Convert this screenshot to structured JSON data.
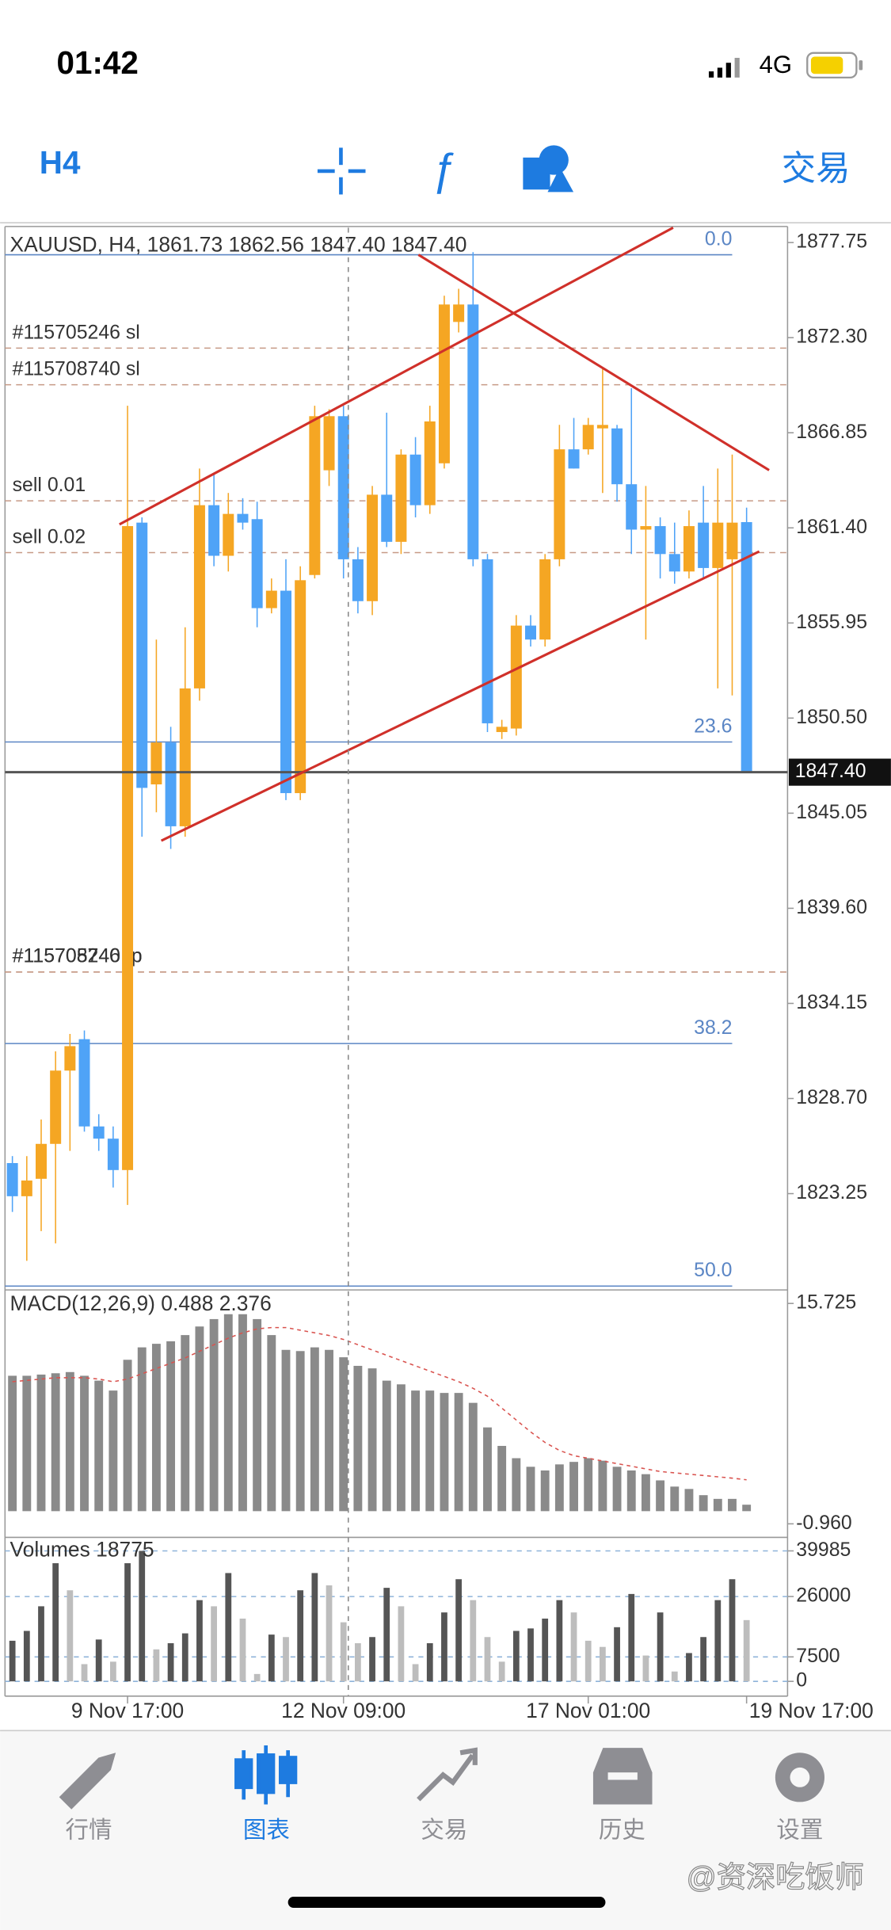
{
  "status_bar": {
    "time": "01:42",
    "network": "4G"
  },
  "toolbar": {
    "timeframe": "H4",
    "trade": "交易"
  },
  "chart_data": [
    {
      "type": "candlestick",
      "title": "XAUUSD, H4, 1861.73 1862.56 1847.40 1847.40",
      "up_color": "#f5a623",
      "down_color": "#4fa3f7",
      "open": [
        1825.0,
        1823.1,
        1824.1,
        1826.1,
        1830.3,
        1832.1,
        1827.1,
        1826.4,
        1824.6,
        1861.7,
        1846.7,
        1849.1,
        1844.3,
        1852.2,
        1862.7,
        1859.8,
        1862.2,
        1861.9,
        1856.8,
        1857.8,
        1846.2,
        1858.7,
        1864.7,
        1867.8,
        1859.6,
        1857.2,
        1863.3,
        1860.6,
        1865.6,
        1862.7,
        1865.1,
        1873.2,
        1874.2,
        1859.6,
        1849.7,
        1849.9,
        1855.8,
        1855.0,
        1859.6,
        1865.9,
        1865.9,
        1867.1,
        1867.1,
        1863.9,
        1861.3,
        1861.5,
        1859.9,
        1858.9,
        1861.7,
        1859.1,
        1859.6,
        1861.73
      ],
      "high": [
        1825.4,
        1825.4,
        1827.5,
        1831.4,
        1832.4,
        1832.6,
        1827.8,
        1827.1,
        1868.4,
        1862.0,
        1855.0,
        1850.0,
        1855.7,
        1864.8,
        1864.5,
        1863.4,
        1863.1,
        1862.9,
        1858.5,
        1859.6,
        1859.2,
        1868.4,
        1868.2,
        1868.4,
        1860.3,
        1863.8,
        1868.0,
        1865.9,
        1866.6,
        1868.4,
        1874.7,
        1875.1,
        1877.2,
        1859.9,
        1850.4,
        1856.4,
        1856.4,
        1859.9,
        1867.3,
        1867.7,
        1867.7,
        1870.5,
        1867.3,
        1869.4,
        1863.8,
        1862.0,
        1861.7,
        1862.4,
        1863.8,
        1864.8,
        1865.6,
        1862.56
      ],
      "low": [
        1822.2,
        1819.4,
        1821.1,
        1820.4,
        1825.7,
        1826.8,
        1825.7,
        1823.6,
        1822.6,
        1843.7,
        1845.1,
        1843.0,
        1843.7,
        1851.5,
        1859.2,
        1858.9,
        1861.3,
        1855.7,
        1856.5,
        1845.8,
        1845.8,
        1858.5,
        1863.8,
        1858.5,
        1856.5,
        1856.4,
        1860.3,
        1859.9,
        1862.0,
        1862.2,
        1864.8,
        1872.6,
        1859.2,
        1849.7,
        1849.3,
        1849.5,
        1854.6,
        1854.6,
        1859.2,
        1864.8,
        1865.6,
        1863.4,
        1862.9,
        1859.9,
        1855.0,
        1858.5,
        1858.2,
        1858.5,
        1858.5,
        1852.2,
        1851.8,
        1847.4
      ],
      "close": [
        1823.1,
        1824.0,
        1826.1,
        1830.3,
        1831.7,
        1827.1,
        1826.4,
        1824.6,
        1861.5,
        1846.5,
        1849.1,
        1844.3,
        1852.2,
        1862.7,
        1859.8,
        1862.2,
        1861.7,
        1856.8,
        1857.8,
        1846.2,
        1858.4,
        1867.8,
        1867.8,
        1859.6,
        1857.2,
        1863.3,
        1860.6,
        1865.6,
        1862.7,
        1867.5,
        1874.2,
        1874.2,
        1859.6,
        1850.2,
        1850.0,
        1855.8,
        1855.0,
        1859.6,
        1865.9,
        1864.8,
        1867.3,
        1867.3,
        1863.9,
        1861.3,
        1861.5,
        1859.9,
        1858.9,
        1861.5,
        1859.1,
        1861.7,
        1861.7,
        1847.4
      ],
      "ylim": [
        1817.8,
        1878.6
      ],
      "yticks": [
        1877.75,
        {
          "value": 1872.3,
          "label": "1872.30"
        },
        1866.85,
        {
          "value": 1861.4,
          "label": "1861.40"
        },
        1855.95,
        {
          "value": 1850.5,
          "label": "1850.50"
        },
        1845.05,
        {
          "value": 1839.6,
          "label": "1839.60"
        },
        1834.15,
        {
          "value": 1828.7,
          "label": "1828.70"
        },
        1823.25
      ],
      "levels": [
        {
          "label": "0.0",
          "value": 1877.05,
          "kind": "fib",
          "color": "#5b86c5"
        },
        {
          "label": "#115705246 sl",
          "value": 1871.7,
          "kind": "order",
          "color": "#c79a86"
        },
        {
          "label": "#115708740 sl",
          "value": 1869.6,
          "kind": "order",
          "color": "#c79a86"
        },
        {
          "label": "sell 0.01",
          "value": 1862.95,
          "kind": "order",
          "color": "#c79a86"
        },
        {
          "label": "sell 0.02",
          "value": 1859.98,
          "kind": "order",
          "color": "#c79a86"
        },
        {
          "label": "23.6",
          "value": 1849.13,
          "kind": "fib",
          "color": "#5b86c5"
        },
        {
          "label": "#115705246 tp",
          "value": 1835.95,
          "kind": "order",
          "color": "#c79a86"
        },
        {
          "label": "#115708740 tp",
          "value": 1835.95,
          "kind": "order",
          "color": "#c79a86"
        },
        {
          "label": "38.2",
          "value": 1831.85,
          "kind": "fib",
          "color": "#5b86c5"
        },
        {
          "label": "50.0",
          "value": 1817.95,
          "kind": "fib",
          "color": "#5b86c5"
        }
      ],
      "last_price": {
        "value": 1847.4,
        "label": "1847.40"
      }
    },
    {
      "type": "macd",
      "title": "MACD(12,26,9) 0.488 2.376",
      "color": "#8a8a8a",
      "signal_color": "#d9534f",
      "values": [
        10.25,
        10.25,
        10.34,
        10.44,
        10.53,
        10.25,
        9.88,
        9.13,
        11.46,
        12.4,
        12.67,
        12.86,
        13.33,
        13.98,
        14.54,
        14.91,
        14.91,
        14.54,
        13.33,
        12.21,
        12.12,
        12.4,
        12.21,
        11.65,
        11.0,
        10.81,
        9.88,
        9.6,
        9.13,
        9.13,
        8.95,
        8.95,
        8.2,
        6.34,
        4.94,
        4.01,
        3.36,
        3.08,
        3.54,
        3.73,
        4.01,
        3.82,
        3.36,
        3.08,
        2.8,
        2.33,
        1.86,
        1.68,
        1.21,
        0.93,
        0.93,
        0.488
      ],
      "signal": [
        9.8,
        9.9,
        10.0,
        10.1,
        10.1,
        10.1,
        10.0,
        9.8,
        10.0,
        10.4,
        10.8,
        11.2,
        11.6,
        12.1,
        12.6,
        13.1,
        13.5,
        13.8,
        13.9,
        13.9,
        13.7,
        13.5,
        13.3,
        13.0,
        12.6,
        12.2,
        11.8,
        11.4,
        11.0,
        10.6,
        10.2,
        9.8,
        9.3,
        8.7,
        7.8,
        6.9,
        6.0,
        5.2,
        4.6,
        4.2,
        4.0,
        3.8,
        3.6,
        3.4,
        3.2,
        3.0,
        2.9,
        2.8,
        2.7,
        2.6,
        2.5,
        2.376
      ],
      "ylim": [
        -1.89,
        16.56
      ],
      "yticks": [
        15.725,
        {
          "value": -0.96,
          "label": "-0.960"
        }
      ]
    },
    {
      "type": "volume",
      "title": "Volumes 18775",
      "up_color": "#555555",
      "down_color": "#bdbdbd",
      "grid_color": "#8fb3d9",
      "values": [
        12448,
        15465,
        23009,
        36211,
        27913,
        5281,
        12825,
        6035,
        36211,
        39985,
        9807,
        11693,
        14711,
        24895,
        23009,
        33194,
        19237,
        2263,
        14334,
        13579,
        27913,
        33194,
        29422,
        18106,
        11693,
        13579,
        28667,
        23009,
        5281,
        11693,
        21123,
        31308,
        24895,
        13579,
        6035,
        15465,
        16220,
        19237,
        24895,
        21123,
        12448,
        10562,
        16597,
        26781,
        7921,
        21123,
        3018,
        8676,
        13579,
        24895,
        31308,
        18775
      ],
      "ylim": [
        -4527,
        43757
      ],
      "yticks": [
        39985,
        26000,
        7500,
        0
      ],
      "xticks": [
        {
          "value": 8,
          "label": "9 Nov 17:00"
        },
        {
          "value": 23,
          "label": "12 Nov 09:00"
        },
        {
          "value": 40,
          "label": "17 Nov 01:00"
        },
        {
          "value": 51,
          "label": "19 Nov 17:00"
        }
      ]
    }
  ],
  "tab_bar": {
    "tabs": [
      {
        "label": "行情",
        "color": "#8e8e93"
      },
      {
        "label": "图表",
        "color": "#1e7be0"
      },
      {
        "label": "交易",
        "color": "#8e8e93"
      },
      {
        "label": "历史",
        "color": "#8e8e93"
      },
      {
        "label": "设置",
        "color": "#8e8e93"
      }
    ]
  },
  "watermark": "@资深吃饭师"
}
